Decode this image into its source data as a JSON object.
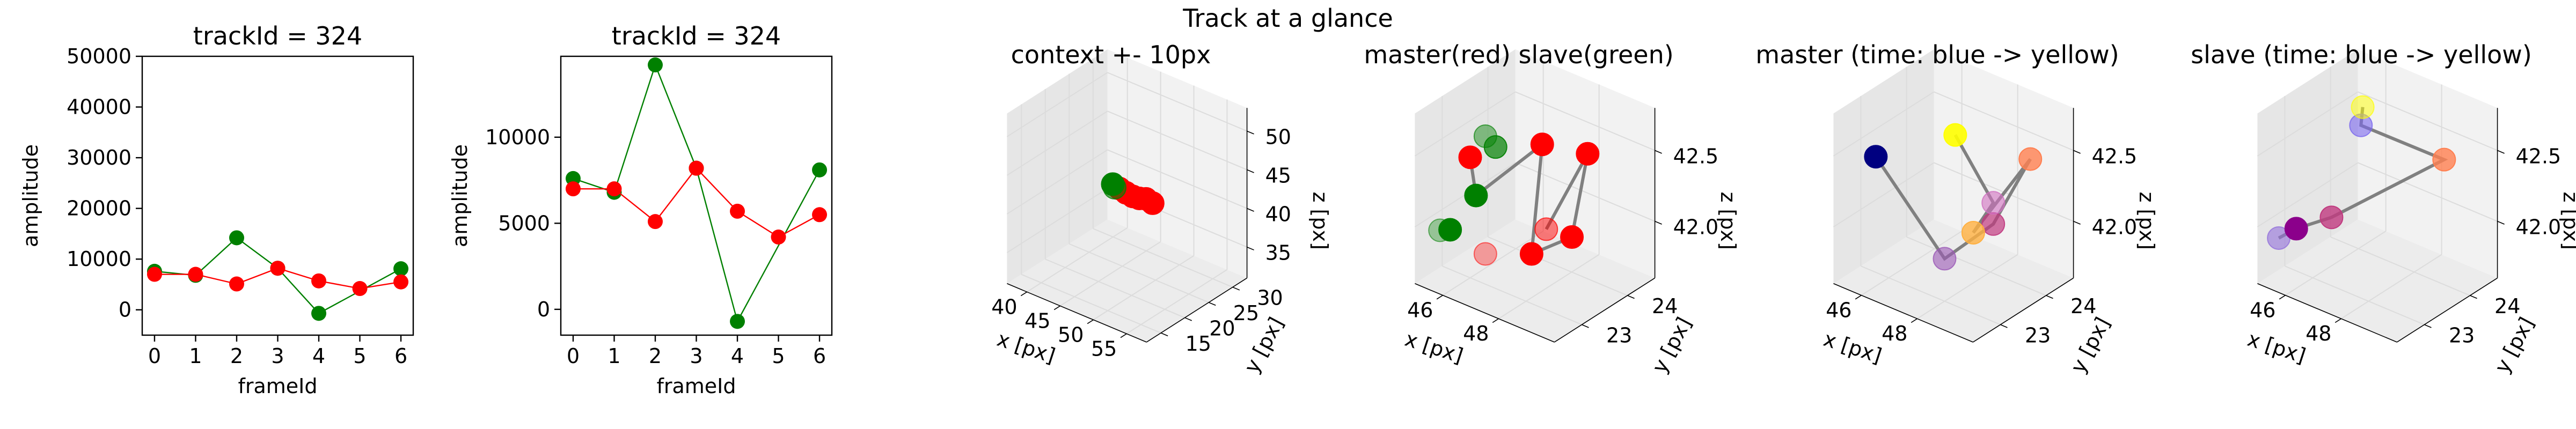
{
  "suptitle": "Track at a glance",
  "colors": {
    "red": "#ff0000",
    "green": "#008000",
    "pane": "#f2f2f2",
    "pane_line": "#e0e0e0",
    "connector": "#808080"
  },
  "chart_data": [
    {
      "type": "line",
      "title": "trackId = 324",
      "xlabel": "frameId",
      "ylabel": "amplitude",
      "xlim": [
        -0.3,
        6.3
      ],
      "ylim": [
        -5000,
        50000
      ],
      "xticks": [
        0,
        1,
        2,
        3,
        4,
        5,
        6
      ],
      "xtick_labels": [
        "0",
        "1",
        "2",
        "3",
        "4",
        "5",
        "6"
      ],
      "yticks": [
        0,
        10000,
        20000,
        30000,
        40000,
        50000
      ],
      "ytick_labels": [
        "0",
        "10000",
        "20000",
        "30000",
        "40000",
        "50000"
      ],
      "grid": false,
      "series": [
        {
          "color": "#008000",
          "x": [
            0,
            1,
            2,
            3,
            4,
            6
          ],
          "y": [
            7600,
            6800,
            14200,
            8200,
            -700,
            8100
          ]
        },
        {
          "color": "#ff0000",
          "x": [
            0,
            1,
            2,
            3,
            4,
            5,
            6
          ],
          "y": [
            7000,
            7000,
            5100,
            8200,
            5700,
            4200,
            5500
          ]
        }
      ]
    },
    {
      "type": "line",
      "title": "trackId = 324",
      "xlabel": "frameId",
      "ylabel": "amplitude",
      "xlim": [
        -0.3,
        6.3
      ],
      "ylim": [
        -1500,
        14700
      ],
      "xticks": [
        0,
        1,
        2,
        3,
        4,
        5,
        6
      ],
      "xtick_labels": [
        "0",
        "1",
        "2",
        "3",
        "4",
        "5",
        "6"
      ],
      "yticks": [
        0,
        5000,
        10000
      ],
      "ytick_labels": [
        "0",
        "5000",
        "10000"
      ],
      "grid": false,
      "series": [
        {
          "color": "#008000",
          "x": [
            0,
            1,
            2,
            3,
            4,
            6
          ],
          "y": [
            7600,
            6800,
            14200,
            8200,
            -700,
            8100
          ]
        },
        {
          "color": "#ff0000",
          "x": [
            0,
            1,
            2,
            3,
            4,
            5,
            6
          ],
          "y": [
            7000,
            7000,
            5100,
            8200,
            5700,
            4200,
            5500
          ]
        }
      ]
    },
    {
      "type": "scatter",
      "title": "context +- 10px",
      "xlabel": "x [px]",
      "ylabel": "y [px]",
      "zlabel": "z [px]",
      "xlim": [
        37,
        58
      ],
      "ylim": [
        12,
        33
      ],
      "zlim": [
        31,
        53
      ],
      "xticks": [
        40,
        45,
        50,
        55
      ],
      "yticks": [
        15,
        20,
        25,
        30
      ],
      "zticks": [
        35,
        40,
        45,
        50
      ],
      "xtick_labels": [
        "40",
        "45",
        "50",
        "55"
      ],
      "ytick_labels": [
        "15",
        "20",
        "25",
        "30"
      ],
      "ztick_labels": [
        "35",
        "40",
        "45",
        "50"
      ],
      "grid": true,
      "points": [
        {
          "x": 46,
          "y": 23,
          "z": 42.2,
          "color": "#ff0000",
          "alpha": 1
        },
        {
          "x": 47,
          "y": 23,
          "z": 42.0,
          "color": "#ff0000",
          "alpha": 1
        },
        {
          "x": 48,
          "y": 23,
          "z": 41.9,
          "color": "#ff0000",
          "alpha": 1
        },
        {
          "x": 49,
          "y": 23,
          "z": 42.0,
          "color": "#ff0000",
          "alpha": 1
        },
        {
          "x": 50,
          "y": 23,
          "z": 42.3,
          "color": "#ff0000",
          "alpha": 1
        },
        {
          "x": 51,
          "y": 23,
          "z": 42.1,
          "color": "#ff0000",
          "alpha": 1
        },
        {
          "x": 45,
          "y": 23,
          "z": 42.4,
          "color": "#008000",
          "alpha": 1
        },
        {
          "x": 46,
          "y": 22,
          "z": 42.7,
          "color": "#008000",
          "alpha": 0.6
        }
      ],
      "path": {
        "x": [
          45,
          47,
          49,
          51
        ],
        "y": [
          23,
          23,
          23,
          23
        ],
        "z": [
          42.2,
          42.0,
          41.9,
          42.0
        ]
      }
    },
    {
      "type": "scatter",
      "title": "master(red) slave(green)",
      "xlabel": "x [px]",
      "ylabel": "y [px]",
      "zlabel": "z [px]",
      "xlim": [
        45,
        50
      ],
      "ylim": [
        22.4,
        24.6
      ],
      "zlim": [
        41.6,
        42.8
      ],
      "xticks": [
        46,
        48
      ],
      "yticks": [
        23,
        24
      ],
      "zticks": [
        42.0,
        42.5
      ],
      "xtick_labels": [
        "46",
        "48"
      ],
      "ytick_labels": [
        "23",
        "24"
      ],
      "ztick_labels": [
        "42.0",
        "42.5"
      ],
      "grid": true,
      "points": [
        {
          "x": 46.0,
          "y": 23.0,
          "z": 42.45,
          "color": "#ff0000",
          "alpha": 1
        },
        {
          "x": 47.6,
          "y": 23.6,
          "z": 42.55,
          "color": "#ff0000",
          "alpha": 1
        },
        {
          "x": 48.4,
          "y": 23.2,
          "z": 42.1,
          "color": "#ff0000",
          "alpha": 0.5
        },
        {
          "x": 48.9,
          "y": 23.8,
          "z": 42.55,
          "color": "#ff0000",
          "alpha": 1
        },
        {
          "x": 48.5,
          "y": 23.7,
          "z": 41.95,
          "color": "#ff0000",
          "alpha": 1
        },
        {
          "x": 48.2,
          "y": 23.0,
          "z": 41.95,
          "color": "#ff0000",
          "alpha": 1
        },
        {
          "x": 47.2,
          "y": 22.6,
          "z": 41.95,
          "color": "#ff0000",
          "alpha": 0.35
        },
        {
          "x": 46.7,
          "y": 22.7,
          "z": 42.3,
          "color": "#008000",
          "alpha": 1
        },
        {
          "x": 47.4,
          "y": 22.7,
          "z": 42.7,
          "color": "#008000",
          "alpha": 0.7
        },
        {
          "x": 47.2,
          "y": 22.6,
          "z": 42.78,
          "color": "#008000",
          "alpha": 0.45
        },
        {
          "x": 46.1,
          "y": 22.5,
          "z": 42.05,
          "color": "#008000",
          "alpha": 1
        },
        {
          "x": 45.9,
          "y": 22.4,
          "z": 42.05,
          "color": "#008000",
          "alpha": 0.35
        }
      ],
      "path": {
        "x": [
          46.0,
          46.7,
          47.6,
          48.2,
          48.5,
          48.9,
          48.4
        ],
        "y": [
          23.0,
          22.7,
          23.6,
          23.0,
          23.7,
          23.8,
          23.2
        ],
        "z": [
          42.45,
          42.3,
          42.55,
          41.95,
          41.95,
          42.55,
          42.1
        ]
      }
    },
    {
      "type": "scatter",
      "title": "master (time: blue -> yellow)",
      "xlabel": "x [px]",
      "ylabel": "y [px]",
      "zlabel": "z [px]",
      "xlim": [
        45,
        50
      ],
      "ylim": [
        22.4,
        24.6
      ],
      "zlim": [
        41.6,
        42.8
      ],
      "xticks": [
        46,
        48
      ],
      "yticks": [
        23,
        24
      ],
      "zticks": [
        42.0,
        42.5
      ],
      "xtick_labels": [
        "46",
        "48"
      ],
      "ytick_labels": [
        "23",
        "24"
      ],
      "ztick_labels": [
        "42.0",
        "42.5"
      ],
      "grid": true,
      "points": [
        {
          "x": 45.7,
          "y": 22.9,
          "z": 42.45,
          "color": "#000080",
          "alpha": 1
        },
        {
          "x": 48.0,
          "y": 23.0,
          "z": 41.9,
          "color": "#9b59b6",
          "alpha": 0.6
        },
        {
          "x": 48.6,
          "y": 23.7,
          "z": 42.05,
          "color": "#c0397f",
          "alpha": 0.7
        },
        {
          "x": 48.6,
          "y": 23.7,
          "z": 42.2,
          "color": "#d070c0",
          "alpha": 0.6
        },
        {
          "x": 48.7,
          "y": 23.2,
          "z": 42.1,
          "color": "#ffb040",
          "alpha": 0.8
        },
        {
          "x": 49.6,
          "y": 23.9,
          "z": 42.55,
          "color": "#ff7f50",
          "alpha": 0.8
        },
        {
          "x": 47.4,
          "y": 23.6,
          "z": 42.6,
          "color": "#ffff00",
          "alpha": 0.9
        }
      ],
      "path": {
        "x": [
          45.7,
          48.0,
          48.6,
          49.6,
          48.7,
          48.6,
          47.4
        ],
        "y": [
          22.9,
          23.0,
          23.7,
          23.9,
          23.2,
          23.7,
          23.6
        ],
        "z": [
          42.45,
          41.9,
          42.05,
          42.55,
          42.1,
          42.2,
          42.6
        ]
      }
    },
    {
      "type": "scatter",
      "title": "slave (time: blue -> yellow)",
      "xlabel": "x [px]",
      "ylabel": "y [px]",
      "zlabel": "z [px]",
      "xlim": [
        45,
        50
      ],
      "ylim": [
        22.4,
        24.6
      ],
      "zlim": [
        41.6,
        42.8
      ],
      "xticks": [
        46,
        48
      ],
      "yticks": [
        23,
        24
      ],
      "zticks": [
        42.0,
        42.5
      ],
      "xtick_labels": [
        "46",
        "48"
      ],
      "ytick_labels": [
        "23",
        "24"
      ],
      "ztick_labels": [
        "42.0",
        "42.5"
      ],
      "grid": true,
      "points": [
        {
          "x": 45.6,
          "y": 22.5,
          "z": 41.95,
          "color": "#9370db",
          "alpha": 0.6
        },
        {
          "x": 45.9,
          "y": 22.7,
          "z": 42.0,
          "color": "#8b008b",
          "alpha": 1
        },
        {
          "x": 47.0,
          "y": 22.8,
          "z": 42.15,
          "color": "#c0397f",
          "alpha": 0.8
        },
        {
          "x": 49.4,
          "y": 23.8,
          "z": 42.55,
          "color": "#ff7f50",
          "alpha": 0.8
        },
        {
          "x": 47.4,
          "y": 23.2,
          "z": 42.75,
          "color": "#7b68ee",
          "alpha": 0.6
        },
        {
          "x": 47.3,
          "y": 23.3,
          "z": 42.85,
          "color": "#ffff00",
          "alpha": 0.5
        }
      ],
      "path": {
        "x": [
          45.6,
          45.9,
          47.0,
          49.4,
          47.4,
          47.3
        ],
        "y": [
          22.5,
          22.7,
          22.8,
          23.8,
          23.2,
          23.3
        ],
        "z": [
          41.95,
          42.0,
          42.15,
          42.55,
          42.75,
          42.85
        ]
      }
    }
  ]
}
